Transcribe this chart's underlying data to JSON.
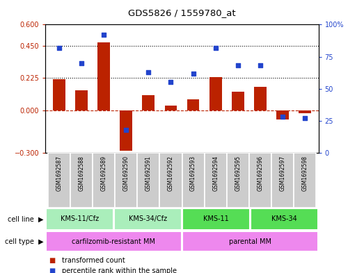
{
  "title": "GDS5826 / 1559780_at",
  "samples": [
    "GSM1692587",
    "GSM1692588",
    "GSM1692589",
    "GSM1692590",
    "GSM1692591",
    "GSM1692592",
    "GSM1692593",
    "GSM1692594",
    "GSM1692595",
    "GSM1692596",
    "GSM1692597",
    "GSM1692598"
  ],
  "bar_values": [
    0.215,
    0.14,
    0.475,
    -0.285,
    0.105,
    0.03,
    0.075,
    0.23,
    0.13,
    0.165,
    -0.065,
    -0.02
  ],
  "scatter_values": [
    82,
    70,
    92,
    18,
    63,
    55,
    62,
    82,
    68,
    68,
    28,
    27
  ],
  "ylim_left": [
    -0.3,
    0.6
  ],
  "ylim_right": [
    0,
    100
  ],
  "yticks_left": [
    -0.3,
    0.0,
    0.225,
    0.45,
    0.6
  ],
  "yticks_right": [
    0,
    25,
    50,
    75,
    100
  ],
  "hlines": [
    0.45,
    0.225
  ],
  "bar_color": "#BB2200",
  "scatter_color": "#2244CC",
  "zero_line_color": "#BB2200",
  "cell_line_groups": [
    {
      "label": "KMS-11/Cfz",
      "start": 0,
      "end": 3,
      "color": "#AAEEBB"
    },
    {
      "label": "KMS-34/Cfz",
      "start": 3,
      "end": 6,
      "color": "#AAEEBB"
    },
    {
      "label": "KMS-11",
      "start": 6,
      "end": 9,
      "color": "#55DD55"
    },
    {
      "label": "KMS-34",
      "start": 9,
      "end": 12,
      "color": "#55DD55"
    }
  ],
  "cell_type_color": "#EE88EE",
  "cell_type_groups": [
    {
      "label": "carfilzomib-resistant MM",
      "start": 0,
      "end": 6
    },
    {
      "label": "parental MM",
      "start": 6,
      "end": 12
    }
  ],
  "sample_box_color": "#CCCCCC",
  "legend_items": [
    {
      "color": "#BB2200",
      "label": "transformed count"
    },
    {
      "color": "#2244CC",
      "label": "percentile rank within the sample"
    }
  ]
}
